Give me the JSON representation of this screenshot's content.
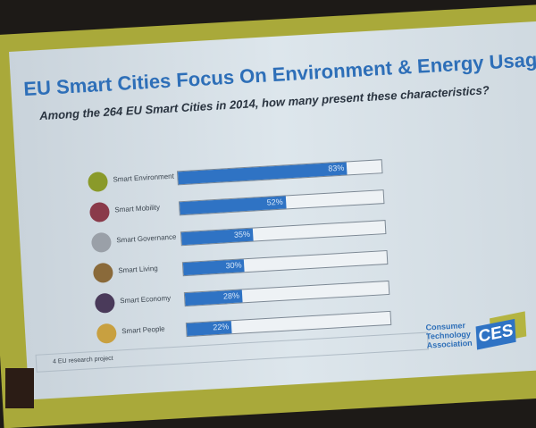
{
  "slide": {
    "title": "EU Smart Cities Focus On Environment & Energy Usage",
    "subtitle": "Among the 264 EU Smart Cities in 2014, how many present these characteristics?",
    "footer": "4 EU research project",
    "logo": {
      "line1": "Consumer",
      "line2": "Technology",
      "line3": "Association",
      "mark": "CES"
    }
  },
  "colors": {
    "bar": "#2f73c4",
    "title": "#2e6fb8",
    "frame": "#a9a93a"
  },
  "chart_data": {
    "type": "bar",
    "orientation": "horizontal",
    "title": "Among the 264 EU Smart Cities in 2014, how many present these characteristics?",
    "categories": [
      "Smart Environment",
      "Smart Mobility",
      "Smart Governance",
      "Smart Living",
      "Smart Economy",
      "Smart People"
    ],
    "values": [
      83,
      52,
      35,
      30,
      28,
      22
    ],
    "labels": [
      "83%",
      "52%",
      "35%",
      "30%",
      "28%",
      "22%"
    ],
    "icons": [
      "recycle-icon",
      "mobility-icon",
      "governance-icon",
      "living-icon",
      "economy-icon",
      "people-icon"
    ],
    "icon_colors": [
      "#8a9a2a",
      "#8a3a4a",
      "#9aa0a8",
      "#8a6a3a",
      "#4a3a5a",
      "#c8a040"
    ],
    "xlim": [
      0,
      100
    ]
  }
}
